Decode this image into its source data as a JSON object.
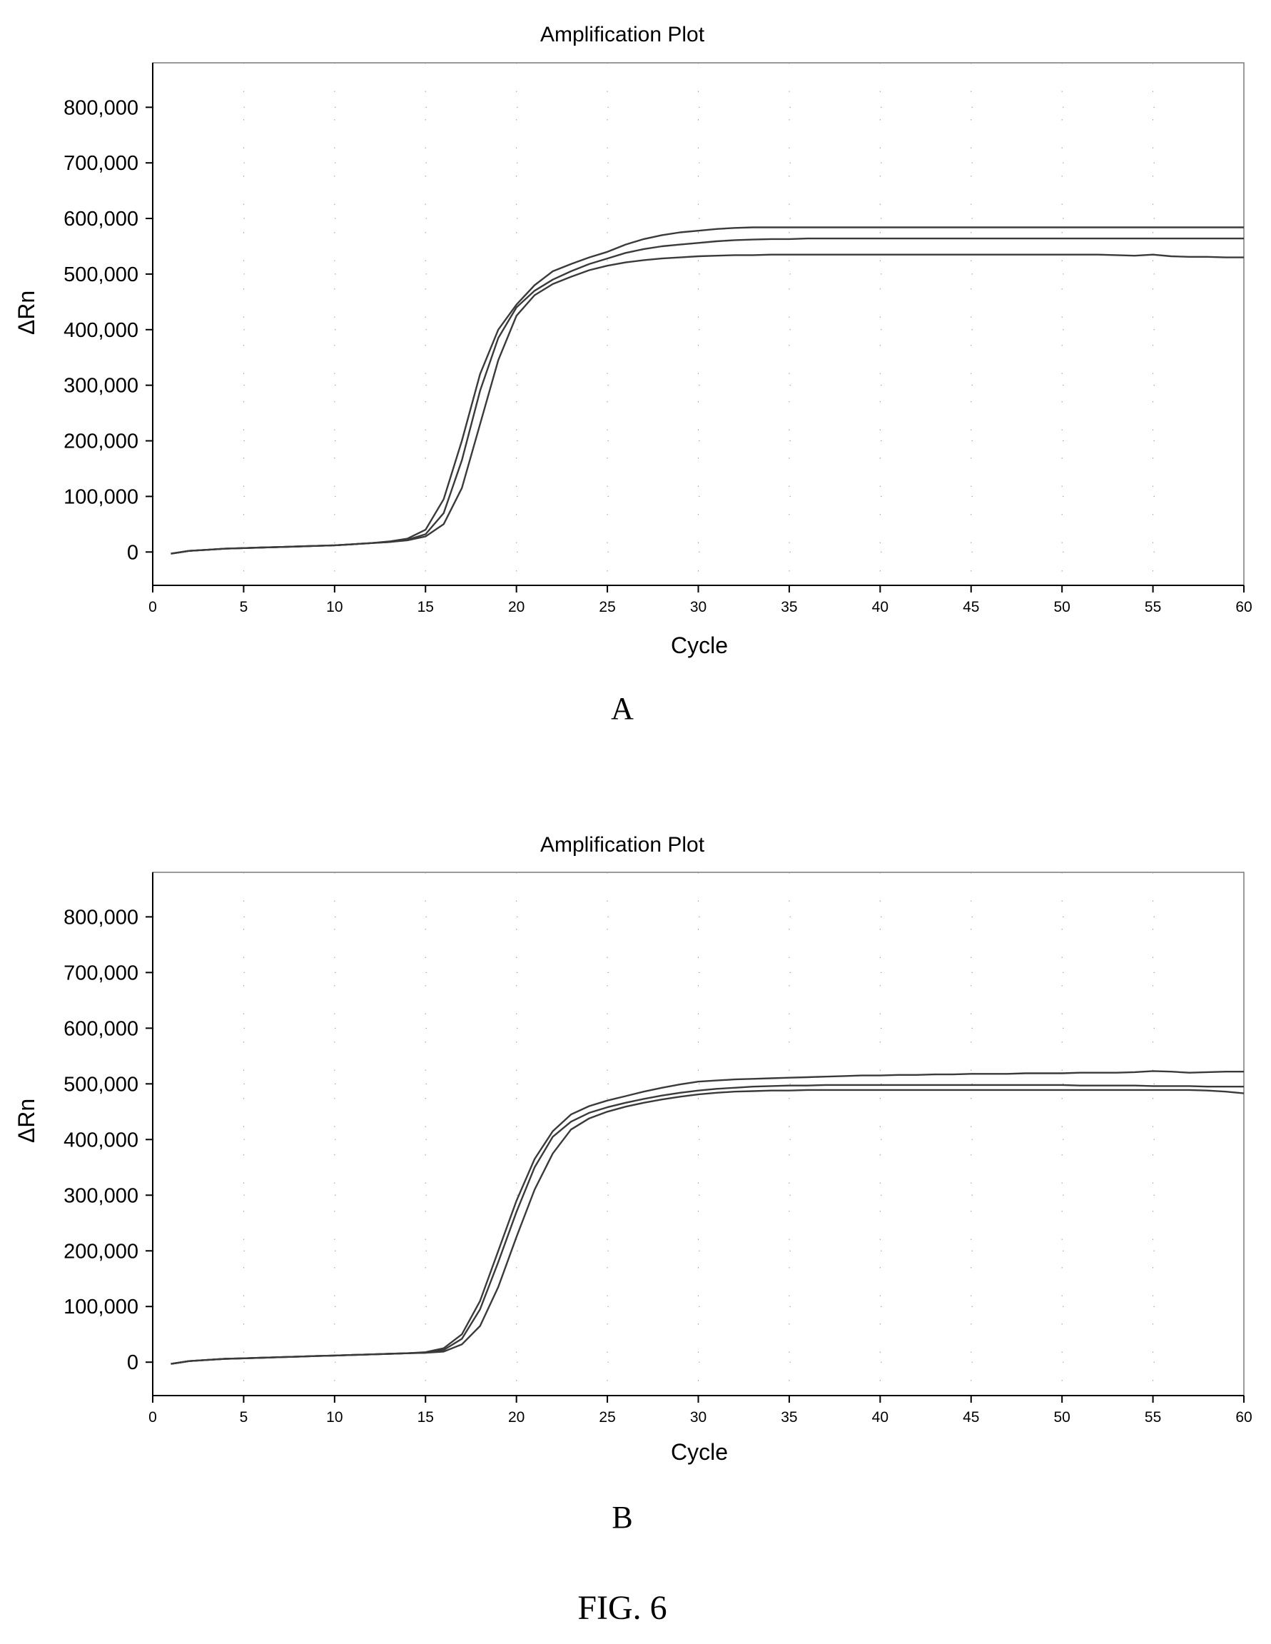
{
  "figure_label": "FIG. 6",
  "colors": {
    "curve": "#3a3a3a",
    "axis": "#000000",
    "frame": "#7a7a7a",
    "grid": "#9a9a9a",
    "background": "#ffffff"
  },
  "chart_data": [
    {
      "type": "line",
      "panel_label": "A",
      "title": "Amplification Plot",
      "xlabel": "Cycle",
      "ylabel": "ΔRn",
      "xlim": [
        0,
        60
      ],
      "ylim": [
        -60000,
        880000
      ],
      "x_ticks": [
        0,
        5,
        10,
        15,
        20,
        25,
        30,
        35,
        40,
        45,
        50,
        55,
        60
      ],
      "y_ticks": [
        0,
        100000,
        200000,
        300000,
        400000,
        500000,
        600000,
        700000,
        800000
      ],
      "y_tick_labels": [
        "0",
        "100,000",
        "200,000",
        "300,000",
        "400,000",
        "500,000",
        "600,000",
        "700,000",
        "800,000"
      ],
      "grid": "dotted",
      "legend": "none",
      "x": [
        1,
        2,
        3,
        4,
        5,
        6,
        7,
        8,
        9,
        10,
        11,
        12,
        13,
        14,
        15,
        16,
        17,
        18,
        19,
        20,
        21,
        22,
        23,
        24,
        25,
        26,
        27,
        28,
        29,
        30,
        31,
        32,
        33,
        34,
        35,
        36,
        37,
        38,
        39,
        40,
        41,
        42,
        43,
        44,
        45,
        46,
        47,
        48,
        49,
        50,
        51,
        52,
        53,
        54,
        55,
        56,
        57,
        58,
        59,
        60
      ],
      "series": [
        {
          "values": [
            -3000,
            2000,
            4000,
            6000,
            7000,
            8000,
            9000,
            10000,
            11000,
            12000,
            14000,
            16000,
            19000,
            24000,
            40000,
            95000,
            200000,
            320000,
            400000,
            445000,
            480000,
            505000,
            518000,
            530000,
            540000,
            553000,
            563000,
            570000,
            575000,
            578000,
            581000,
            583000,
            584000,
            584000,
            584000,
            584000,
            584000,
            584000,
            584000,
            584000,
            584000,
            584000,
            584000,
            584000,
            584000,
            584000,
            584000,
            584000,
            584000,
            584000,
            584000,
            584000,
            584000,
            584000,
            584000,
            584000,
            584000,
            584000,
            584000,
            584000
          ]
        },
        {
          "values": [
            -3000,
            2000,
            4000,
            6000,
            7000,
            8000,
            9000,
            10000,
            11000,
            12000,
            14000,
            16000,
            18000,
            22000,
            32000,
            70000,
            165000,
            290000,
            385000,
            440000,
            470000,
            490000,
            505000,
            518000,
            528000,
            538000,
            545000,
            550000,
            553000,
            556000,
            559000,
            561000,
            562000,
            563000,
            563000,
            564000,
            564000,
            564000,
            564000,
            564000,
            564000,
            564000,
            564000,
            564000,
            564000,
            564000,
            564000,
            564000,
            564000,
            564000,
            564000,
            564000,
            564000,
            564000,
            564000,
            564000,
            564000,
            564000,
            564000,
            564000
          ]
        },
        {
          "values": [
            -3000,
            2000,
            4000,
            6000,
            7000,
            8000,
            9000,
            10000,
            11000,
            12000,
            14000,
            16000,
            18000,
            21000,
            28000,
            50000,
            115000,
            230000,
            345000,
            425000,
            462000,
            482000,
            495000,
            507000,
            515000,
            521000,
            525000,
            528000,
            530000,
            532000,
            533000,
            534000,
            534000,
            535000,
            535000,
            535000,
            535000,
            535000,
            535000,
            535000,
            535000,
            535000,
            535000,
            535000,
            535000,
            535000,
            535000,
            535000,
            535000,
            535000,
            535000,
            535000,
            534000,
            533000,
            535000,
            532000,
            531000,
            531000,
            530000,
            530000
          ]
        }
      ]
    },
    {
      "type": "line",
      "panel_label": "B",
      "title": "Amplification Plot",
      "xlabel": "Cycle",
      "ylabel": "ΔRn",
      "xlim": [
        0,
        60
      ],
      "ylim": [
        -60000,
        880000
      ],
      "x_ticks": [
        0,
        5,
        10,
        15,
        20,
        25,
        30,
        35,
        40,
        45,
        50,
        55,
        60
      ],
      "y_ticks": [
        0,
        100000,
        200000,
        300000,
        400000,
        500000,
        600000,
        700000,
        800000
      ],
      "y_tick_labels": [
        "0",
        "100,000",
        "200,000",
        "300,000",
        "400,000",
        "500,000",
        "600,000",
        "700,000",
        "800,000"
      ],
      "grid": "dotted",
      "legend": "none",
      "x": [
        1,
        2,
        3,
        4,
        5,
        6,
        7,
        8,
        9,
        10,
        11,
        12,
        13,
        14,
        15,
        16,
        17,
        18,
        19,
        20,
        21,
        22,
        23,
        24,
        25,
        26,
        27,
        28,
        29,
        30,
        31,
        32,
        33,
        34,
        35,
        36,
        37,
        38,
        39,
        40,
        41,
        42,
        43,
        44,
        45,
        46,
        47,
        48,
        49,
        50,
        51,
        52,
        53,
        54,
        55,
        56,
        57,
        58,
        59,
        60
      ],
      "series": [
        {
          "values": [
            -3000,
            2000,
            4000,
            6000,
            7000,
            8000,
            9000,
            10000,
            11000,
            12000,
            13000,
            14000,
            15000,
            16000,
            18000,
            25000,
            50000,
            110000,
            200000,
            290000,
            365000,
            415000,
            445000,
            460000,
            470000,
            478000,
            486000,
            493000,
            499000,
            504000,
            506000,
            508000,
            509000,
            510000,
            511000,
            512000,
            513000,
            514000,
            515000,
            515000,
            516000,
            516000,
            517000,
            517000,
            518000,
            518000,
            518000,
            519000,
            519000,
            519000,
            520000,
            520000,
            520000,
            521000,
            523000,
            522000,
            520000,
            521000,
            522000,
            522000
          ]
        },
        {
          "values": [
            -3000,
            2000,
            4000,
            6000,
            7000,
            8000,
            9000,
            10000,
            11000,
            12000,
            13000,
            14000,
            15000,
            16000,
            17000,
            22000,
            42000,
            95000,
            180000,
            270000,
            350000,
            405000,
            432000,
            448000,
            458000,
            466000,
            473000,
            479000,
            484000,
            488000,
            491000,
            493000,
            495000,
            496000,
            497000,
            497000,
            498000,
            498000,
            498000,
            498000,
            498000,
            498000,
            498000,
            498000,
            498000,
            498000,
            498000,
            498000,
            498000,
            498000,
            497000,
            497000,
            497000,
            497000,
            496000,
            496000,
            496000,
            495000,
            495000,
            495000
          ]
        },
        {
          "values": [
            -3000,
            2000,
            4000,
            6000,
            7000,
            8000,
            9000,
            10000,
            11000,
            12000,
            13000,
            14000,
            15000,
            16000,
            17000,
            19000,
            32000,
            65000,
            135000,
            225000,
            310000,
            375000,
            418000,
            438000,
            450000,
            459000,
            466000,
            472000,
            477000,
            481000,
            484000,
            486000,
            487000,
            488000,
            488000,
            489000,
            489000,
            489000,
            489000,
            489000,
            489000,
            489000,
            489000,
            489000,
            489000,
            489000,
            489000,
            489000,
            489000,
            489000,
            489000,
            489000,
            489000,
            489000,
            489000,
            489000,
            489000,
            488000,
            486000,
            483000
          ]
        }
      ]
    }
  ]
}
